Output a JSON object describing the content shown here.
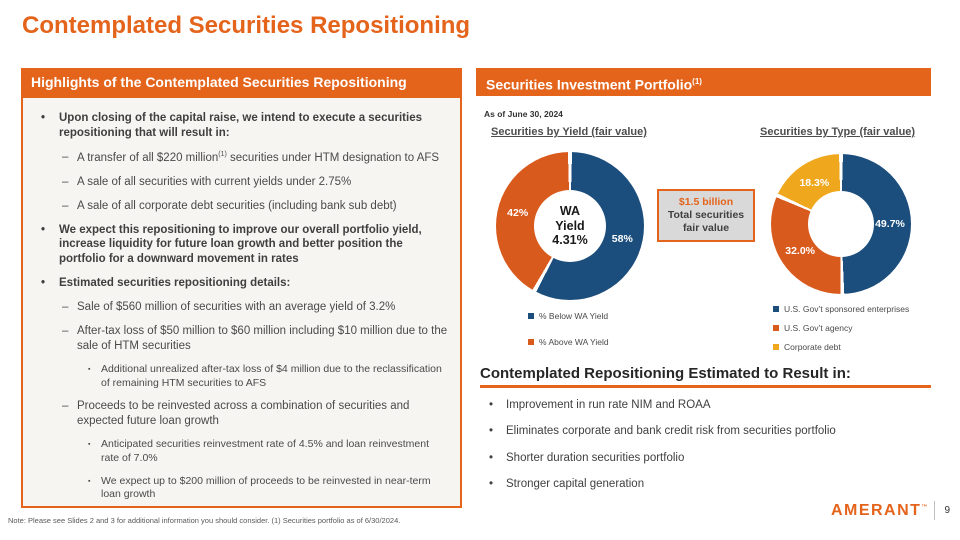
{
  "slide": {
    "title": "Contemplated Securities Repositioning",
    "footnote": "Note: Please see Slides 2 and 3 for additional information you should consider. (1) Securities portfolio as of 6/30/2024.",
    "logo_text": "AMERANT",
    "logo_tm": "™",
    "page_number": "9"
  },
  "colors": {
    "brand_orange": "#E4641C",
    "chart_blue": "#1B4E7D",
    "chart_orange": "#D95A1D",
    "chart_yellow": "#EFA81E",
    "panel_bg": "#F7F5F2",
    "box_bg": "#D9D9D9"
  },
  "left_panel": {
    "header": "Highlights of the Contemplated Securities Repositioning",
    "bullets": [
      {
        "level": 1,
        "bold": true,
        "parts": [
          {
            "t": "Upon closing of the capital raise, we intend to execute a securities repositioning that will result in:"
          }
        ]
      },
      {
        "level": 2,
        "parts": [
          {
            "t": "A transfer of all $220 million"
          },
          {
            "t": "(1)",
            "sup": true
          },
          {
            "t": " securities under HTM designation to AFS"
          }
        ]
      },
      {
        "level": 2,
        "parts": [
          {
            "t": "A sale of all securities with current yields under 2.75%"
          }
        ]
      },
      {
        "level": 2,
        "parts": [
          {
            "t": "A sale of all corporate debt securities (including bank sub debt)"
          }
        ]
      },
      {
        "level": 1,
        "bold": true,
        "parts": [
          {
            "t": "We expect this repositioning to improve our overall portfolio yield, increase liquidity for future loan growth and better position the portfolio for a downward movement in rates"
          }
        ]
      },
      {
        "level": 1,
        "bold": true,
        "parts": [
          {
            "t": "Estimated securities repositioning details:"
          }
        ]
      },
      {
        "level": 2,
        "parts": [
          {
            "t": "Sale of $560 million of securities with an average yield of 3.2%"
          }
        ]
      },
      {
        "level": 2,
        "parts": [
          {
            "t": "After-tax loss of $50 million to $60 million including $10 million due to the sale of HTM securities"
          }
        ]
      },
      {
        "level": 3,
        "parts": [
          {
            "t": "Additional unrealized after-tax loss of $4 million due to the reclassification of remaining HTM securities to AFS"
          }
        ]
      },
      {
        "level": 2,
        "parts": [
          {
            "t": "Proceeds to be reinvested across a combination of securities and expected future loan growth"
          }
        ]
      },
      {
        "level": 3,
        "parts": [
          {
            "t": "Anticipated securities reinvestment rate of 4.5% and loan reinvestment rate of 7.0%"
          }
        ]
      },
      {
        "level": 3,
        "parts": [
          {
            "t": "We expect up to $200 million of proceeds to be reinvested in near-term loan growth"
          }
        ]
      }
    ]
  },
  "right_panel": {
    "header": "Securities Investment Portfolio",
    "header_sup": "(1)",
    "as_of": "As of June 30, 2024",
    "result_section": {
      "heading": "Contemplated Repositioning Estimated to Result in:",
      "bullets": [
        "Improvement in run rate NIM and ROAA",
        "Eliminates corporate and bank credit risk from securities portfolio",
        "Shorter duration securities portfolio",
        "Stronger capital generation"
      ]
    }
  },
  "chart_data": [
    {
      "type": "pie",
      "subtype": "donut",
      "title": "Securities by Yield (fair value)",
      "center_label": "WA\nYield\n4.31%",
      "slices": [
        {
          "label": "% Below WA Yield",
          "value": 58,
          "display": "58%",
          "color": "#1B4E7D"
        },
        {
          "label": "% Above WA Yield",
          "value": 42,
          "display": "42%",
          "color": "#D95A1D"
        }
      ],
      "annotation": {
        "value": "$1.5 billion",
        "label": "Total securities fair value"
      },
      "legend_position": "bottom"
    },
    {
      "type": "pie",
      "subtype": "donut",
      "title": "Securities by Type (fair value)",
      "slices": [
        {
          "label": "U.S. Gov’t sponsored enterprises",
          "value": 49.7,
          "display": "49.7%",
          "color": "#1B4E7D"
        },
        {
          "label": "U.S. Gov’t agency",
          "value": 32.0,
          "display": "32.0%",
          "color": "#D95A1D"
        },
        {
          "label": "Corporate debt",
          "value": 18.3,
          "display": "18.3%",
          "color": "#EFA81E"
        }
      ],
      "legend_position": "bottom"
    }
  ]
}
